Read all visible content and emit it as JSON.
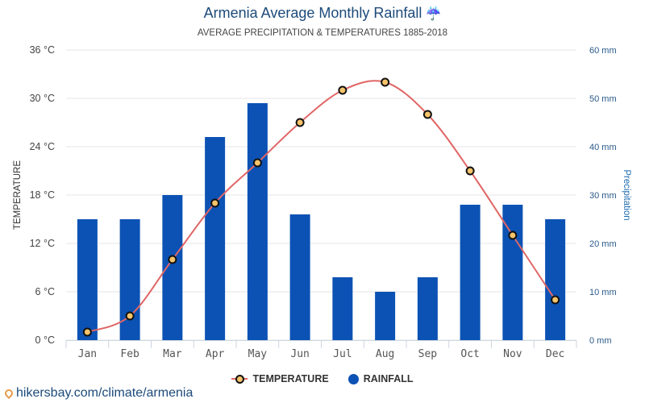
{
  "header": {
    "title": "Armenia Average Monthly Rainfall",
    "title_icon": "umbrella-rain-icon",
    "subtitle": "AVERAGE PRECIPITATION & TEMPERATURES 1885-2018"
  },
  "legend": {
    "temperature_label": "TEMPERATURE",
    "rainfall_label": "RAINFALL"
  },
  "source": {
    "icon": "location-pin-icon",
    "text": "hikersbay.com/climate/armenia"
  },
  "colors": {
    "rainfall_bar": "#0b52b4",
    "temperature_line": "#e06666",
    "temperature_marker_fill": "#f5c36b",
    "temperature_marker_stroke": "#111111",
    "title": "#1c4a7a",
    "right_axis": "#2a5a8a",
    "grid": "#e6e6e6"
  },
  "chart_data": {
    "type": "bar",
    "title": "Armenia Average Monthly Rainfall",
    "subtitle": "AVERAGE PRECIPITATION & TEMPERATURES 1885-2018",
    "categories": [
      "Jan",
      "Feb",
      "Mar",
      "Apr",
      "May",
      "Jun",
      "Jul",
      "Aug",
      "Sep",
      "Oct",
      "Nov",
      "Dec"
    ],
    "series": [
      {
        "name": "RAINFALL",
        "type": "bar",
        "axis": "right",
        "unit": "mm",
        "values": [
          25,
          25,
          30,
          42,
          49,
          26,
          13,
          10,
          13,
          28,
          28,
          25
        ]
      },
      {
        "name": "TEMPERATURE",
        "type": "line",
        "axis": "left",
        "unit": "°C",
        "values": [
          1,
          3,
          10,
          17,
          22,
          27,
          31,
          32,
          28,
          21,
          13,
          5
        ]
      }
    ],
    "y_left": {
      "label": "TEMPERATURE",
      "range": [
        0,
        36
      ],
      "ticks": [
        0,
        6,
        12,
        18,
        24,
        30,
        36
      ],
      "tick_labels": [
        "0 °C",
        "6 °C",
        "12 °C",
        "18 °C",
        "24 °C",
        "30 °C",
        "36 °C"
      ]
    },
    "y_right": {
      "label": "Precipitation",
      "range": [
        0,
        60
      ],
      "ticks": [
        0,
        10,
        20,
        30,
        40,
        50,
        60
      ],
      "tick_labels": [
        "0 mm",
        "10 mm",
        "20 mm",
        "30 mm",
        "40 mm",
        "50 mm",
        "60 mm"
      ]
    },
    "xlabel": "",
    "grid": true,
    "legend_position": "bottom-center"
  }
}
